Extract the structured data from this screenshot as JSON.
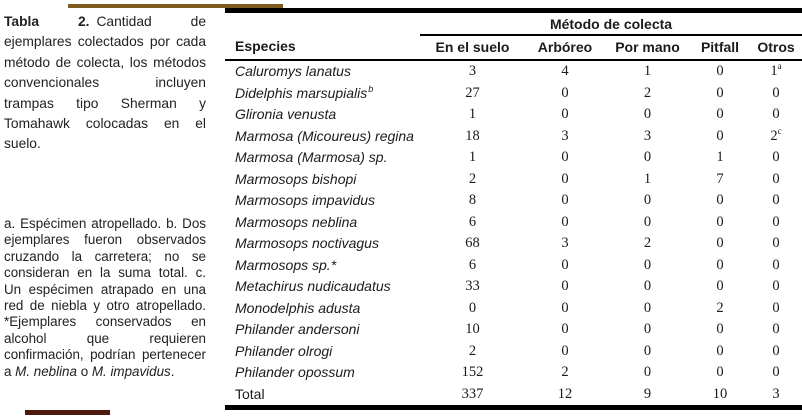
{
  "decor": {
    "top_rule_color": "#7d5c1d",
    "bottom_rule_color": "#4e190f"
  },
  "caption": {
    "label": "Tabla 2.",
    "text": "Cantidad de ejemplares colectados por cada método de colecta, los métodos convenciona­les incluyen trampas tipo Sherman y Tomahawk co­locadas en el suelo."
  },
  "footnotes": {
    "parts": [
      {
        "t": "a. Espécimen atropellado. b. Dos ejemplares fueron observados cruzando la carretera; no se consideran en la suma total.  c. Un es­pécimen atrapado en una red de niebla y otro atro­pellado. *Ejemplares con­servados en alcohol que requieren confirmación, podrían pertenecer a ",
        "i": false
      },
      {
        "t": "M. neblina",
        "i": true
      },
      {
        "t": " o ",
        "i": false
      },
      {
        "t": "M.  impavidus",
        "i": true
      },
      {
        "t": ".",
        "i": false
      }
    ]
  },
  "table": {
    "species_header": "Especies",
    "group_header": "Método de colecta",
    "columns": [
      "En el suelo",
      "Arbóreo",
      "Por mano",
      "Pitfall",
      "Otros"
    ],
    "rows": [
      {
        "name": "Caluromys lanatus",
        "sup": "",
        "italic": true,
        "values": [
          "3",
          "4",
          "1",
          "0",
          "1"
        ],
        "value_sups": [
          "",
          "",
          "",
          "",
          "a"
        ]
      },
      {
        "name": "Didelphis marsupialis",
        "sup": "b",
        "italic": true,
        "values": [
          "27",
          "0",
          "2",
          "0",
          "0"
        ],
        "value_sups": [
          "",
          "",
          "",
          "",
          ""
        ]
      },
      {
        "name": "Glironia venusta",
        "sup": "",
        "italic": true,
        "values": [
          "1",
          "0",
          "0",
          "0",
          "0"
        ],
        "value_sups": [
          "",
          "",
          "",
          "",
          ""
        ]
      },
      {
        "name": "Marmosa (Micoureus) regina",
        "sup": "",
        "italic": true,
        "values": [
          "18",
          "3",
          "3",
          "0",
          "2"
        ],
        "value_sups": [
          "",
          "",
          "",
          "",
          "c"
        ]
      },
      {
        "name": "Marmosa (Marmosa) sp.",
        "sup": "",
        "italic": true,
        "values": [
          "1",
          "0",
          "0",
          "1",
          "0"
        ],
        "value_sups": [
          "",
          "",
          "",
          "",
          ""
        ]
      },
      {
        "name": "Marmosops bishopi",
        "sup": "",
        "italic": true,
        "values": [
          "2",
          "0",
          "1",
          "7",
          "0"
        ],
        "value_sups": [
          "",
          "",
          "",
          "",
          ""
        ]
      },
      {
        "name": "Marmosops impavidus",
        "sup": "",
        "italic": true,
        "values": [
          "8",
          "0",
          "0",
          "0",
          "0"
        ],
        "value_sups": [
          "",
          "",
          "",
          "",
          ""
        ]
      },
      {
        "name": "Marmosops neblina",
        "sup": "",
        "italic": true,
        "values": [
          "6",
          "0",
          "0",
          "0",
          "0"
        ],
        "value_sups": [
          "",
          "",
          "",
          "",
          ""
        ]
      },
      {
        "name": "Marmosops noctivagus",
        "sup": "",
        "italic": true,
        "values": [
          "68",
          "3",
          "2",
          "0",
          "0"
        ],
        "value_sups": [
          "",
          "",
          "",
          "",
          ""
        ]
      },
      {
        "name": "Marmosops sp.*",
        "sup": "",
        "italic": true,
        "values": [
          "6",
          "0",
          "0",
          "0",
          "0"
        ],
        "value_sups": [
          "",
          "",
          "",
          "",
          ""
        ]
      },
      {
        "name": "Metachirus nudicaudatus",
        "sup": "",
        "italic": true,
        "values": [
          "33",
          "0",
          "0",
          "0",
          "0"
        ],
        "value_sups": [
          "",
          "",
          "",
          "",
          ""
        ]
      },
      {
        "name": "Monodelphis adusta",
        "sup": "",
        "italic": true,
        "values": [
          "0",
          "0",
          "0",
          "2",
          "0"
        ],
        "value_sups": [
          "",
          "",
          "",
          "",
          ""
        ]
      },
      {
        "name": "Philander andersoni",
        "sup": "",
        "italic": true,
        "values": [
          "10",
          "0",
          "0",
          "0",
          "0"
        ],
        "value_sups": [
          "",
          "",
          "",
          "",
          ""
        ]
      },
      {
        "name": "Philander olrogi",
        "sup": "",
        "italic": true,
        "values": [
          "2",
          "0",
          "0",
          "0",
          "0"
        ],
        "value_sups": [
          "",
          "",
          "",
          "",
          ""
        ]
      },
      {
        "name": "Philander opossum",
        "sup": "",
        "italic": true,
        "values": [
          "152",
          "2",
          "0",
          "0",
          "0"
        ],
        "value_sups": [
          "",
          "",
          "",
          "",
          ""
        ]
      },
      {
        "name": "Total",
        "sup": "",
        "italic": false,
        "values": [
          "337",
          "12",
          "9",
          "10",
          "3"
        ],
        "value_sups": [
          "",
          "",
          "",
          "",
          ""
        ]
      }
    ]
  }
}
